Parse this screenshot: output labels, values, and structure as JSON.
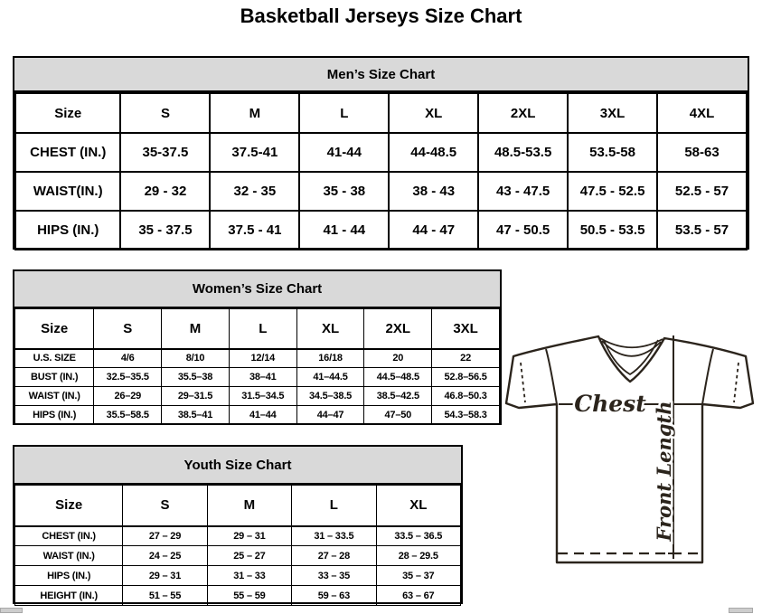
{
  "page_title": "Basketball Jerseys Size Chart",
  "colors": {
    "table_header_bg": "#d9d9d9",
    "table_border": "#000000",
    "diagram_stroke": "#2b241c",
    "page_bg": "#ffffff"
  },
  "tables": {
    "men": {
      "title": "Men’s Size Chart",
      "columns": [
        "Size",
        "S",
        "M",
        "L",
        "XL",
        "2XL",
        "3XL",
        "4XL"
      ],
      "rows": [
        {
          "label": "CHEST (IN.)",
          "values": [
            "35-37.5",
            "37.5-41",
            "41-44",
            "44-48.5",
            "48.5-53.5",
            "53.5-58",
            "58-63"
          ]
        },
        {
          "label": "WAIST(IN.)",
          "values": [
            "29 - 32",
            "32 - 35",
            "35 - 38",
            "38 - 43",
            "43 - 47.5",
            "47.5 - 52.5",
            "52.5 - 57"
          ]
        },
        {
          "label": "HIPS (IN.)",
          "values": [
            "35 - 37.5",
            "37.5 - 41",
            "41 - 44",
            "44 - 47",
            "47 - 50.5",
            "50.5 - 53.5",
            "53.5 - 57"
          ]
        }
      ]
    },
    "women": {
      "title": "Women’s Size Chart",
      "columns": [
        "Size",
        "S",
        "M",
        "L",
        "XL",
        "2XL",
        "3XL"
      ],
      "rows": [
        {
          "label": "U.S. SIZE",
          "values": [
            "4/6",
            "8/10",
            "12/14",
            "16/18",
            "20",
            "22"
          ]
        },
        {
          "label": "BUST (IN.)",
          "values": [
            "32.5–35.5",
            "35.5–38",
            "38–41",
            "41–44.5",
            "44.5–48.5",
            "52.8–56.5"
          ]
        },
        {
          "label": "WAIST (IN.)",
          "values": [
            "26–29",
            "29–31.5",
            "31.5–34.5",
            "34.5–38.5",
            "38.5–42.5",
            "46.8–50.3"
          ]
        },
        {
          "label": "HIPS (IN.)",
          "values": [
            "35.5–58.5",
            "38.5–41",
            "41–44",
            "44–47",
            "47–50",
            "54.3–58.3"
          ]
        }
      ]
    },
    "youth": {
      "title": "Youth Size Chart",
      "columns": [
        "Size",
        "S",
        "M",
        "L",
        "XL"
      ],
      "rows": [
        {
          "label": "CHEST (IN.)",
          "values": [
            "27 – 29",
            "29 – 31",
            "31 – 33.5",
            "33.5 – 36.5"
          ]
        },
        {
          "label": "WAIST (IN.)",
          "values": [
            "24 – 25",
            "25 – 27",
            "27 – 28",
            "28 – 29.5"
          ]
        },
        {
          "label": "HIPS (IN.)",
          "values": [
            "29 – 31",
            "31 – 33",
            "33 – 35",
            "35 – 37"
          ]
        },
        {
          "label": "HEIGHT (IN.)",
          "values": [
            "51 – 55",
            "55 – 59",
            "59 – 63",
            "63 – 67"
          ]
        }
      ]
    }
  },
  "diagram": {
    "chest_label": "Chest",
    "front_length_label": "Front Length"
  }
}
